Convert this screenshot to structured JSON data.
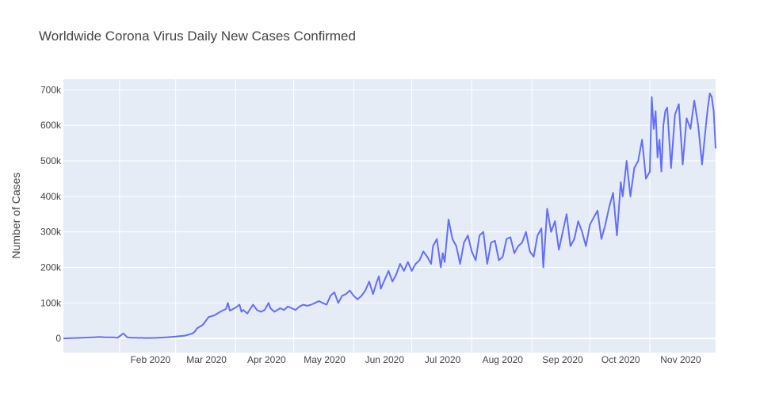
{
  "chart_data": {
    "type": "line",
    "title": "Worldwide Corona Virus Daily New Cases Confirmed",
    "xlabel": "",
    "ylabel": "Number of Cases",
    "x_range": [
      "2020-01-03",
      "2020-12-05"
    ],
    "ylim": [
      -40000,
      730000
    ],
    "grid": true,
    "x_ticks": [
      {
        "date": "2020-02-01",
        "label": "Feb 2020"
      },
      {
        "date": "2020-03-01",
        "label": "Mar 2020"
      },
      {
        "date": "2020-04-01",
        "label": "Apr 2020"
      },
      {
        "date": "2020-05-01",
        "label": "May 2020"
      },
      {
        "date": "2020-06-01",
        "label": "Jun 2020"
      },
      {
        "date": "2020-07-01",
        "label": "Jul 2020"
      },
      {
        "date": "2020-08-01",
        "label": "Aug 2020"
      },
      {
        "date": "2020-09-01",
        "label": "Sep 2020"
      },
      {
        "date": "2020-10-01",
        "label": "Oct 2020"
      },
      {
        "date": "2020-11-01",
        "label": "Nov 2020"
      }
    ],
    "y_ticks": [
      {
        "value": 0,
        "label": "0"
      },
      {
        "value": 100000,
        "label": "100k"
      },
      {
        "value": 200000,
        "label": "200k"
      },
      {
        "value": 300000,
        "label": "300k"
      },
      {
        "value": 400000,
        "label": "400k"
      },
      {
        "value": 500000,
        "label": "500k"
      },
      {
        "value": 600000,
        "label": "600k"
      },
      {
        "value": 700000,
        "label": "700k"
      }
    ],
    "series": [
      {
        "color": "#636efa",
        "x": [
          "2020-01-03",
          "2020-01-08",
          "2020-01-13",
          "2020-01-18",
          "2020-01-22",
          "2020-01-25",
          "2020-01-29",
          "2020-01-31",
          "2020-02-03",
          "2020-02-05",
          "2020-02-07",
          "2020-02-10",
          "2020-02-11",
          "2020-02-12",
          "2020-02-13",
          "2020-02-16",
          "2020-02-20",
          "2020-02-25",
          "2020-03-01",
          "2020-03-06",
          "2020-03-09",
          "2020-03-10",
          "2020-03-11",
          "2020-03-12",
          "2020-03-15",
          "2020-03-18",
          "2020-03-21",
          "2020-03-24",
          "2020-03-27",
          "2020-03-28",
          "2020-03-29",
          "2020-04-01",
          "2020-04-03",
          "2020-04-04",
          "2020-04-05",
          "2020-04-07",
          "2020-04-10",
          "2020-04-12",
          "2020-04-14",
          "2020-04-16",
          "2020-04-18",
          "2020-04-19",
          "2020-04-21",
          "2020-04-24",
          "2020-04-26",
          "2020-04-28",
          "2020-04-30",
          "2020-05-02",
          "2020-05-04",
          "2020-05-06",
          "2020-05-08",
          "2020-05-10",
          "2020-05-12",
          "2020-05-14",
          "2020-05-16",
          "2020-05-18",
          "2020-05-20",
          "2020-05-22",
          "2020-05-24",
          "2020-05-26",
          "2020-05-28",
          "2020-05-30",
          "2020-06-01",
          "2020-06-03",
          "2020-06-05",
          "2020-06-07",
          "2020-06-09",
          "2020-06-11",
          "2020-06-13",
          "2020-06-14",
          "2020-06-15",
          "2020-06-17",
          "2020-06-19",
          "2020-06-21",
          "2020-06-23",
          "2020-06-25",
          "2020-06-27",
          "2020-06-29",
          "2020-07-01",
          "2020-07-03",
          "2020-07-05",
          "2020-07-07",
          "2020-07-09",
          "2020-07-11",
          "2020-07-12",
          "2020-07-14",
          "2020-07-16",
          "2020-07-17",
          "2020-07-18",
          "2020-07-20",
          "2020-07-22",
          "2020-07-24",
          "2020-07-26",
          "2020-07-28",
          "2020-07-30",
          "2020-08-01",
          "2020-08-03",
          "2020-08-05",
          "2020-08-07",
          "2020-08-09",
          "2020-08-11",
          "2020-08-13",
          "2020-08-15",
          "2020-08-17",
          "2020-08-19",
          "2020-08-21",
          "2020-08-23",
          "2020-08-25",
          "2020-08-27",
          "2020-08-29",
          "2020-08-31",
          "2020-09-02",
          "2020-09-04",
          "2020-09-06",
          "2020-09-07",
          "2020-09-09",
          "2020-09-11",
          "2020-09-13",
          "2020-09-15",
          "2020-09-17",
          "2020-09-19",
          "2020-09-21",
          "2020-09-23",
          "2020-09-25",
          "2020-09-27",
          "2020-09-29",
          "2020-10-01",
          "2020-10-03",
          "2020-10-05",
          "2020-10-07",
          "2020-10-09",
          "2020-10-11",
          "2020-10-13",
          "2020-10-15",
          "2020-10-17",
          "2020-10-18",
          "2020-10-20",
          "2020-10-22",
          "2020-10-24",
          "2020-10-26",
          "2020-10-28",
          "2020-10-30",
          "2020-11-01",
          "2020-11-02",
          "2020-11-03",
          "2020-11-04",
          "2020-11-05",
          "2020-11-06",
          "2020-11-07",
          "2020-11-08",
          "2020-11-09",
          "2020-11-10",
          "2020-11-12",
          "2020-11-14",
          "2020-11-16",
          "2020-11-18",
          "2020-11-20",
          "2020-11-22",
          "2020-11-24",
          "2020-11-26",
          "2020-11-28",
          "2020-11-30",
          "2020-12-01",
          "2020-12-02",
          "2020-12-03",
          "2020-12-04",
          "2020-12-05"
        ],
        "y": [
          0,
          1000,
          2000,
          3000,
          4000,
          3000,
          3000,
          2000,
          14000,
          3000,
          2000,
          2000,
          1000,
          2000,
          1000,
          1000,
          1500,
          3000,
          5000,
          8000,
          13000,
          15000,
          20000,
          28000,
          38000,
          60000,
          65000,
          75000,
          83000,
          100000,
          78000,
          87000,
          95000,
          75000,
          80000,
          70000,
          95000,
          80000,
          75000,
          80000,
          100000,
          85000,
          75000,
          85000,
          80000,
          90000,
          85000,
          80000,
          90000,
          95000,
          92000,
          95000,
          100000,
          105000,
          100000,
          95000,
          120000,
          130000,
          100000,
          120000,
          125000,
          135000,
          120000,
          110000,
          120000,
          135000,
          160000,
          125000,
          160000,
          175000,
          140000,
          165000,
          190000,
          160000,
          180000,
          210000,
          190000,
          215000,
          190000,
          210000,
          220000,
          245000,
          230000,
          210000,
          260000,
          280000,
          200000,
          240000,
          215000,
          335000,
          280000,
          260000,
          210000,
          270000,
          290000,
          245000,
          220000,
          290000,
          300000,
          210000,
          270000,
          275000,
          220000,
          230000,
          280000,
          285000,
          240000,
          260000,
          270000,
          300000,
          245000,
          230000,
          290000,
          310000,
          200000,
          365000,
          300000,
          330000,
          250000,
          300000,
          350000,
          260000,
          280000,
          330000,
          300000,
          260000,
          320000,
          340000,
          360000,
          280000,
          320000,
          370000,
          410000,
          290000,
          440000,
          400000,
          500000,
          400000,
          480000,
          500000,
          560000,
          450000,
          470000,
          680000,
          590000,
          640000,
          510000,
          560000,
          470000,
          600000,
          640000,
          650000,
          480000,
          630000,
          660000,
          490000,
          620000,
          590000,
          670000,
          600000,
          490000,
          600000,
          650000,
          690000,
          680000,
          640000,
          535000
        ]
      }
    ]
  }
}
